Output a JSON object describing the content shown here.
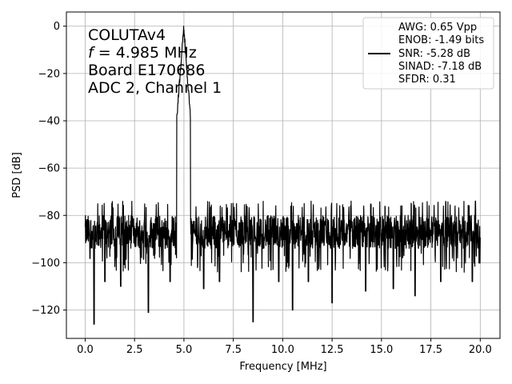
{
  "chart_data": {
    "type": "line",
    "xlabel": "Frequency [MHz]",
    "ylabel": "PSD [dB]",
    "xlim": [
      -0.95,
      21.0
    ],
    "ylim": [
      -132,
      6
    ],
    "xticks": [
      0.0,
      2.5,
      5.0,
      7.5,
      10.0,
      12.5,
      15.0,
      17.5,
      20.0
    ],
    "xtick_labels": [
      "0.0",
      "2.5",
      "5.0",
      "7.5",
      "10.0",
      "12.5",
      "15.0",
      "17.5",
      "20.0"
    ],
    "yticks": [
      0,
      -20,
      -40,
      -60,
      -80,
      -100,
      -120
    ],
    "ytick_labels": [
      "0",
      "−20",
      "−40",
      "−60",
      "−80",
      "−100",
      "−120"
    ],
    "grid": true,
    "annotation": {
      "line1": "COLUTAv4",
      "line2_var": "f",
      "line2_rest": " = 4.985 MHz",
      "line3": "Board E170686",
      "line4": "ADC 2, Channel 1"
    },
    "legend": {
      "placement": "top-right",
      "entries": [
        "AWG: 0.65 Vpp",
        "ENOB: -1.49 bits",
        "SNR: -5.28 dB",
        "SINAD: -7.18 dB",
        "SFDR: 0.31"
      ]
    },
    "series": [
      {
        "color": "#000000",
        "noise_floor_mean": -87,
        "noise_floor_top": -76,
        "peak": {
          "x": 4.985,
          "y": 0
        },
        "x_range": [
          0.0,
          20.0
        ],
        "dips": [
          {
            "x": 0.45,
            "y": -126
          },
          {
            "x": 1.0,
            "y": -108
          },
          {
            "x": 1.8,
            "y": -110
          },
          {
            "x": 3.2,
            "y": -121
          },
          {
            "x": 4.3,
            "y": -108
          },
          {
            "x": 6.0,
            "y": -111
          },
          {
            "x": 6.8,
            "y": -108
          },
          {
            "x": 8.5,
            "y": -125
          },
          {
            "x": 9.8,
            "y": -108
          },
          {
            "x": 10.5,
            "y": -120
          },
          {
            "x": 11.3,
            "y": -108
          },
          {
            "x": 12.5,
            "y": -117
          },
          {
            "x": 14.2,
            "y": -112
          },
          {
            "x": 15.6,
            "y": -111
          },
          {
            "x": 16.7,
            "y": -114
          },
          {
            "x": 18.0,
            "y": -108
          },
          {
            "x": 19.6,
            "y": -108
          }
        ]
      }
    ]
  }
}
